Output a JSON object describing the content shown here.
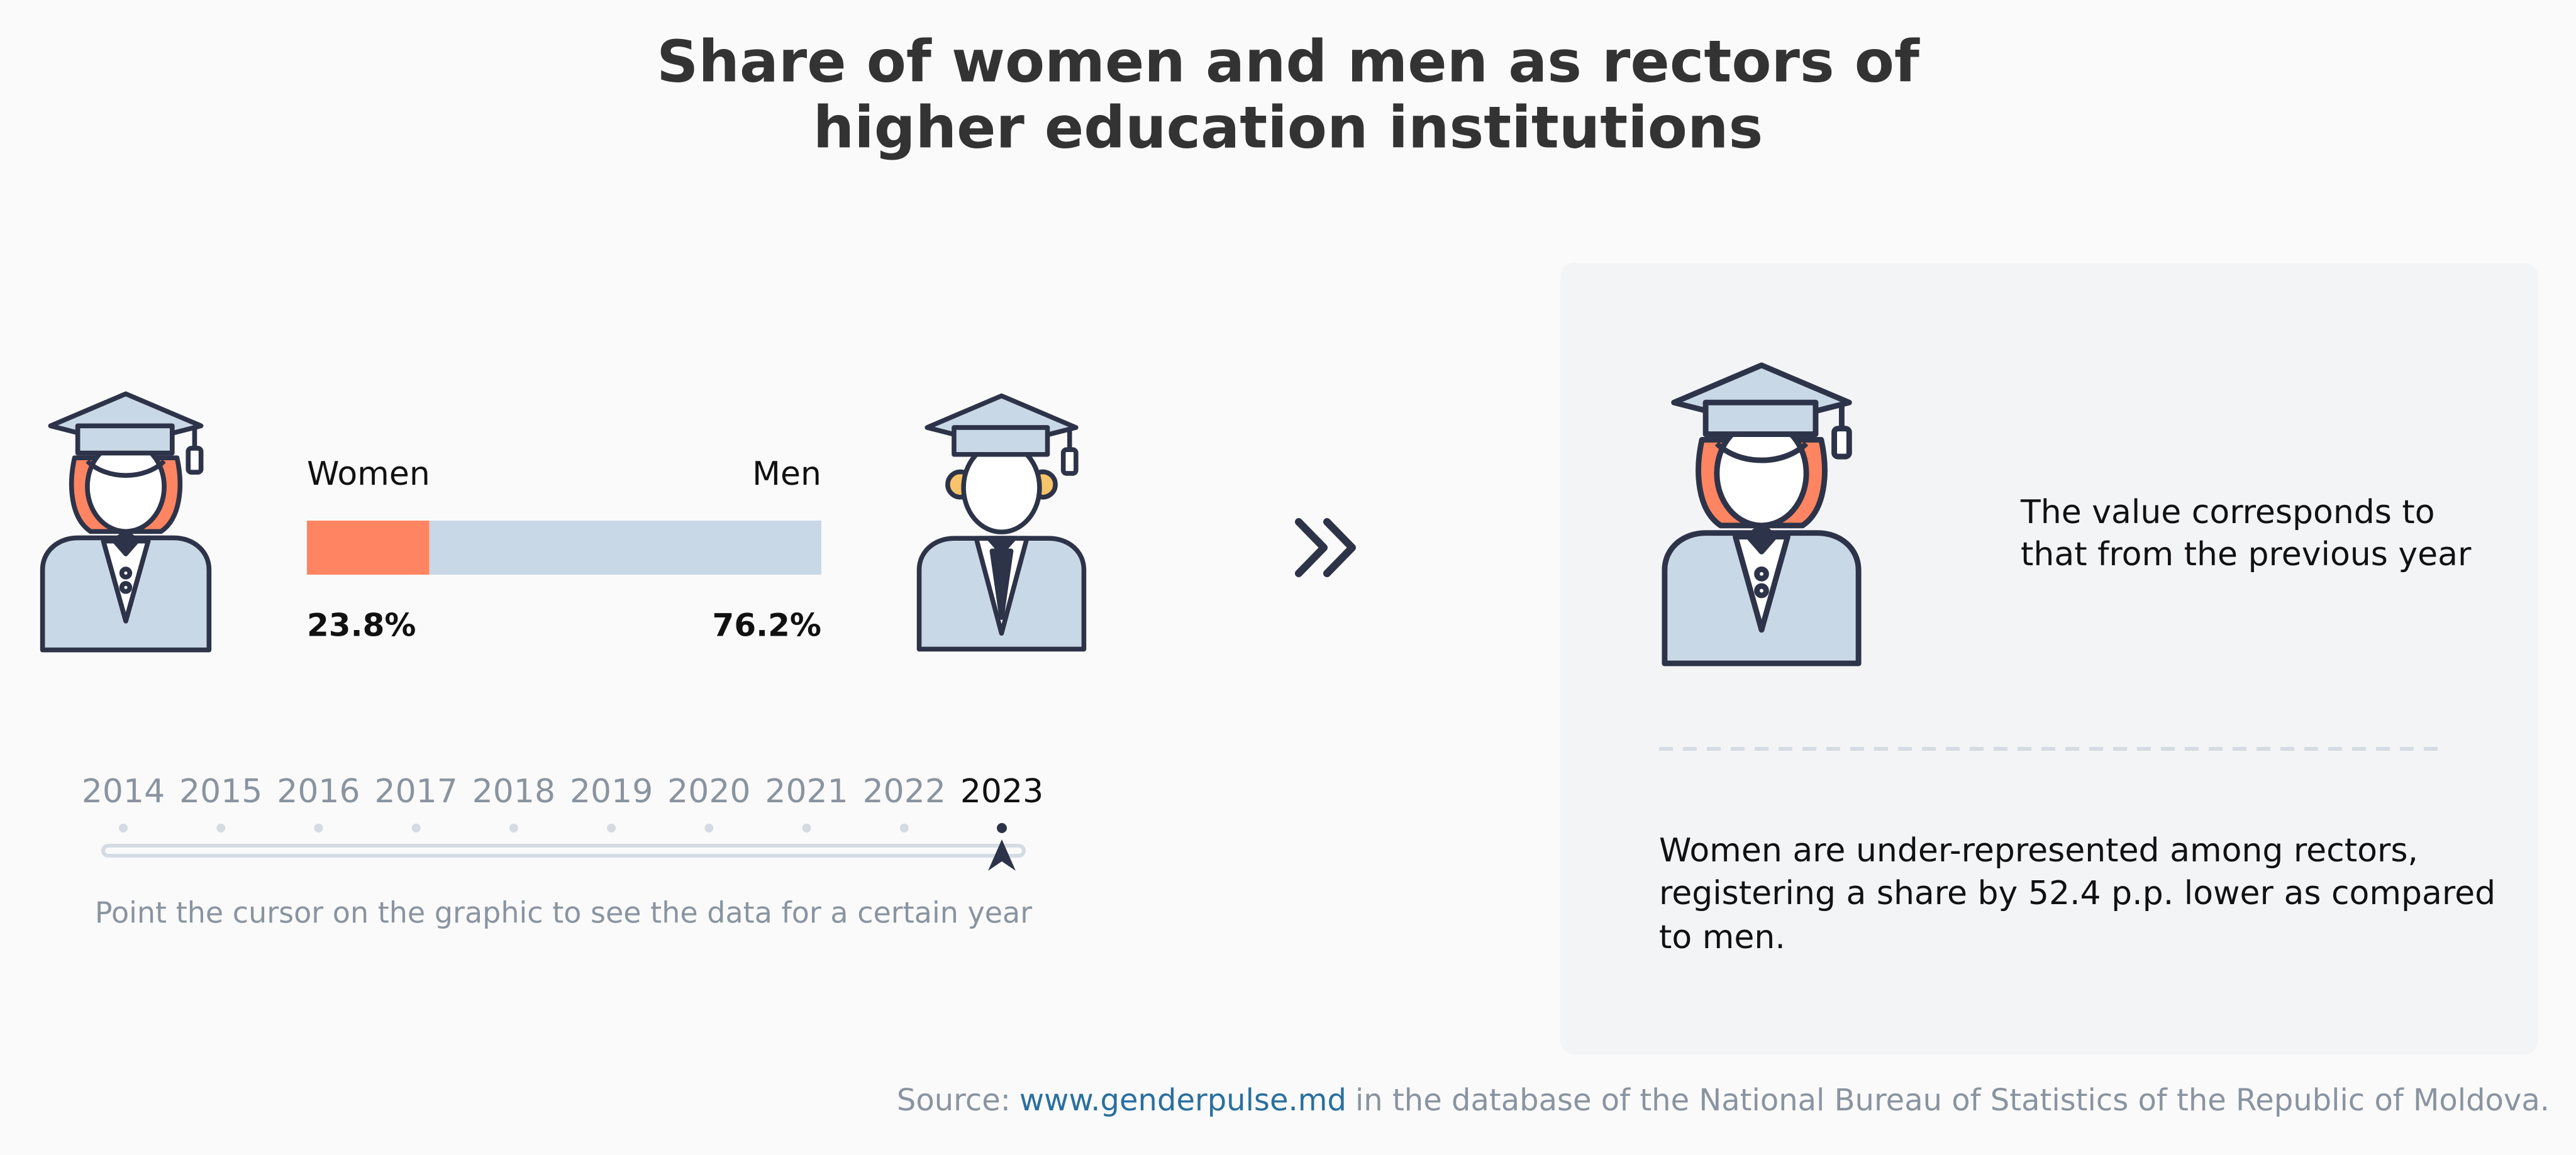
{
  "title": [
    "Share of women and men as rectors of",
    "higher education institutions"
  ],
  "chart_data": {
    "type": "bar",
    "xlim": [
      0,
      100
    ],
    "series": [
      {
        "name": "Women",
        "color": "#ff8562",
        "values": [
          23.8
        ],
        "value_labels": [
          "23.8%"
        ]
      },
      {
        "name": "Men",
        "color": "#c9d8e6",
        "values": [
          76.2
        ],
        "value_labels": [
          "76.2%"
        ]
      }
    ]
  },
  "timeline": {
    "years": [
      "2014",
      "2015",
      "2016",
      "2017",
      "2018",
      "2019",
      "2020",
      "2021",
      "2022",
      "2023"
    ],
    "selected": "2023",
    "hint": "Point the cursor on the graphic to see the data for a certain year"
  },
  "panel": {
    "note": [
      "The value corresponds to",
      "that from the previous year"
    ],
    "summary": [
      "Women are under-represented among rectors,",
      "registering a share by 52.4 p.p. lower as compared",
      "to men."
    ]
  },
  "source": {
    "prefix": "Source:",
    "link": "www.genderpulse.md",
    "text": "in the database of the National Bureau of Statistics of the Republic of Moldova."
  }
}
